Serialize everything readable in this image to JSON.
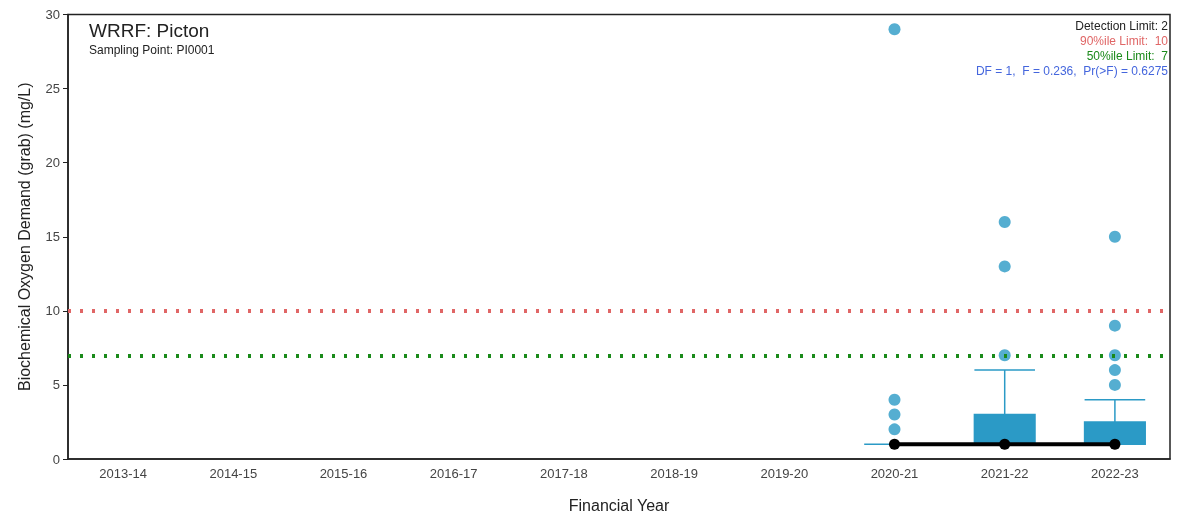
{
  "chart_data": {
    "type": "box",
    "title": "WRRF: Picton",
    "subtitle": "Sampling Point: PI0001",
    "xlabel": "Financial Year",
    "ylabel": "Biochemical Oxygen Demand (grab) (mg/L)",
    "categories": [
      "2013-14",
      "2014-15",
      "2015-16",
      "2016-17",
      "2017-18",
      "2018-19",
      "2019-20",
      "2020-21",
      "2021-22",
      "2022-23"
    ],
    "series": [
      {
        "color": "#2b9ac6",
        "boxes": [
          null,
          null,
          null,
          null,
          null,
          null,
          null,
          {
            "low": 1,
            "q1": 1,
            "median": 1,
            "q3": 1,
            "high": 1,
            "outliers": [
              2,
              3,
              4,
              29
            ]
          },
          {
            "low": 1,
            "q1": 1,
            "median": 1,
            "q3": 3,
            "high": 6,
            "outliers": [
              7,
              13,
              16
            ]
          },
          {
            "low": 1,
            "q1": 1,
            "median": 1,
            "q3": 2.5,
            "high": 4,
            "outliers": [
              5,
              6,
              7,
              9,
              15
            ]
          }
        ]
      },
      {
        "type": "line",
        "color": "#000000",
        "marker": "circle",
        "values": [
          null,
          null,
          null,
          null,
          null,
          null,
          null,
          1,
          1,
          1
        ]
      }
    ],
    "ylim": [
      0,
      30
    ],
    "yticks": [
      0,
      5,
      10,
      15,
      20,
      25,
      30
    ],
    "grid": false,
    "ref_lines": [
      {
        "axis": "y",
        "value": 10,
        "label": "90%ile Limit:  10",
        "color": "#e06666",
        "line_style": "dotted"
      },
      {
        "axis": "y",
        "value": 7,
        "label": "50%ile Limit:  7",
        "color": "#1a8a1a",
        "line_style": "dotted"
      }
    ],
    "annotations": [
      "Detection Limit: 2",
      "DF = 1,  F = 0.236,  Pr(>F) = 0.6275"
    ]
  }
}
